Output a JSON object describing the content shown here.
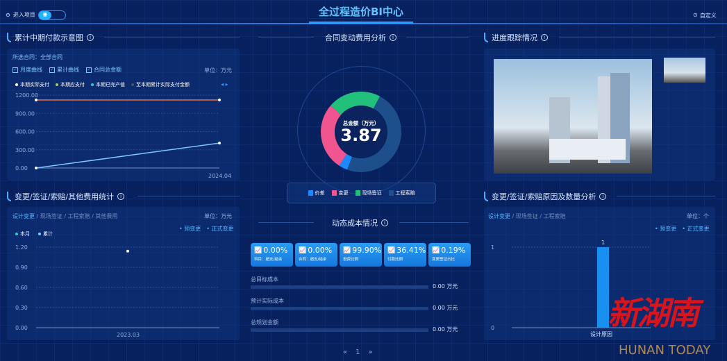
{
  "header": {
    "title": "全过程造价BI中心",
    "enter_project": "进入项目",
    "customize": "自定义"
  },
  "payment_chart": {
    "title": "累计中期付款示意图",
    "selected_contract": "所选合同：全部合同",
    "checkboxes": [
      "月度曲线",
      "累计曲线",
      "合同总金额"
    ],
    "unit": "单位：万元",
    "legend": [
      "本期实际支付",
      "本期应支付",
      "本期已完产值",
      "至本期累计实际支付金额"
    ]
  },
  "contract_change": {
    "title": "合同变动费用分析",
    "center_label": "总金额（万元）",
    "center_value": "3.87",
    "legend": [
      "价差",
      "变更",
      "现场签证",
      "工程索赔"
    ]
  },
  "progress": {
    "title": "进度跟踪情况"
  },
  "fee_stats": {
    "title": "变更/签证/索赔/其他费用统计",
    "tabs": [
      "设计变更",
      "现场签证",
      "工程索赔",
      "其他费用"
    ],
    "unit": "单位：万元",
    "filters": [
      "预变更",
      "正式变更"
    ],
    "legend": [
      "本月",
      "累计"
    ]
  },
  "dynamic_cost": {
    "title": "动态成本情况",
    "cards": [
      {
        "value": "0.00%",
        "label": "科目：超支/结余"
      },
      {
        "value": "0.00%",
        "label": "合同：超支/结余"
      },
      {
        "value": "99.90%",
        "label": "投资比例"
      },
      {
        "value": "36.41%",
        "label": "付款比例"
      },
      {
        "value": "0.19%",
        "label": "变更签证占比"
      }
    ],
    "rows": [
      {
        "label": "总目标成本",
        "value": "0.00 万元",
        "fraction": 0
      },
      {
        "label": "预计实际成本",
        "value": "0.00 万元",
        "fraction": 0
      },
      {
        "label": "总规划金额",
        "value": "0.00 万元",
        "fraction": 0
      }
    ],
    "page": "1"
  },
  "reason_analysis": {
    "title": "变更/签证/索赔原因及数量分析",
    "tabs": [
      "设计变更",
      "现场签证",
      "工程索赔"
    ],
    "unit": "单位：个",
    "filters": [
      "预变更",
      "正式变更"
    ]
  },
  "watermark": {
    "logo": "新湖南",
    "text": "HUNAN TODAY"
  },
  "colors": {
    "accent": "#26a0ff",
    "price_diff": "#1e88ff",
    "change": "#f0558f",
    "site_visa": "#22c07a",
    "claim": "#1d4f8c",
    "payment_line": "#e0704a"
  },
  "chart_data": [
    {
      "type": "line",
      "categories": [
        "",
        "2024.04"
      ],
      "ylim": [
        0,
        1200
      ],
      "yticks": [
        "0.00",
        "300.00",
        "600.00",
        "900.00",
        "1200.00"
      ],
      "series": [
        {
          "name": "合同总金额",
          "values": [
            1120,
            1120
          ],
          "color": "#e0704a"
        },
        {
          "name": "至本期累计实际支付金额",
          "values": [
            0,
            410
          ],
          "color": "#7ec6ff"
        }
      ],
      "grid": true
    },
    {
      "type": "scatter",
      "categories": [
        "2023.03"
      ],
      "ylim": [
        0,
        1.2
      ],
      "yticks": [
        "0.00",
        "0.30",
        "0.60",
        "0.90",
        "1.20"
      ],
      "series": [
        {
          "name": "累计",
          "values": [
            1.14
          ]
        }
      ],
      "grid": true
    },
    {
      "type": "pie",
      "categories": [
        "价差",
        "变更",
        "现场签证",
        "工程索赔"
      ],
      "values": [
        0.14,
        1.05,
        0.83,
        1.85
      ],
      "total": 3.87
    },
    {
      "type": "bar",
      "categories": [
        "设计原因"
      ],
      "values": [
        1
      ],
      "data_labels": [
        "1"
      ],
      "ylim": [
        0,
        1
      ],
      "yticks": [
        "0",
        "1"
      ]
    }
  ]
}
